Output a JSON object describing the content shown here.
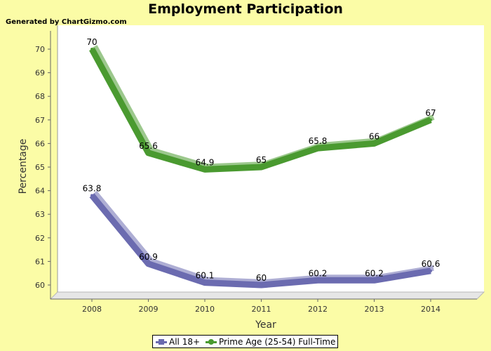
{
  "header": {
    "title": "Employment Participation",
    "generated_by": "Generated by ChartGizmo.com"
  },
  "chart_data": {
    "type": "line",
    "title": "Employment Participation",
    "xlabel": "Year",
    "ylabel": "Percentage",
    "categories": [
      "2008",
      "2009",
      "2010",
      "2011",
      "2012",
      "2013",
      "2014"
    ],
    "ylim": [
      60,
      70
    ],
    "yticks": [
      "60",
      "61",
      "62",
      "63",
      "64",
      "65",
      "66",
      "67",
      "68",
      "69",
      "70"
    ],
    "series": [
      {
        "name": "All 18+",
        "values": [
          63.8,
          60.9,
          60.1,
          60,
          60.2,
          60.2,
          60.6
        ],
        "labels": [
          "63.8",
          "60.9",
          "60.1",
          "60",
          "60.2",
          "60.2",
          "60.6"
        ],
        "color": "#6b6bb0",
        "marker": "square"
      },
      {
        "name": "Prime Age (25-54) Full-Time",
        "values": [
          70,
          65.6,
          64.9,
          65,
          65.8,
          66,
          67
        ],
        "labels": [
          "70",
          "65.6",
          "64.9",
          "65",
          "65.8",
          "66",
          "67"
        ],
        "color": "#4a9a30",
        "marker": "circle"
      }
    ],
    "grid": false,
    "legend_position": "bottom-center",
    "colors": {
      "page_background": "#fbfca6",
      "plot_background": "#ffffff",
      "floor": "#e6e6e6"
    }
  }
}
